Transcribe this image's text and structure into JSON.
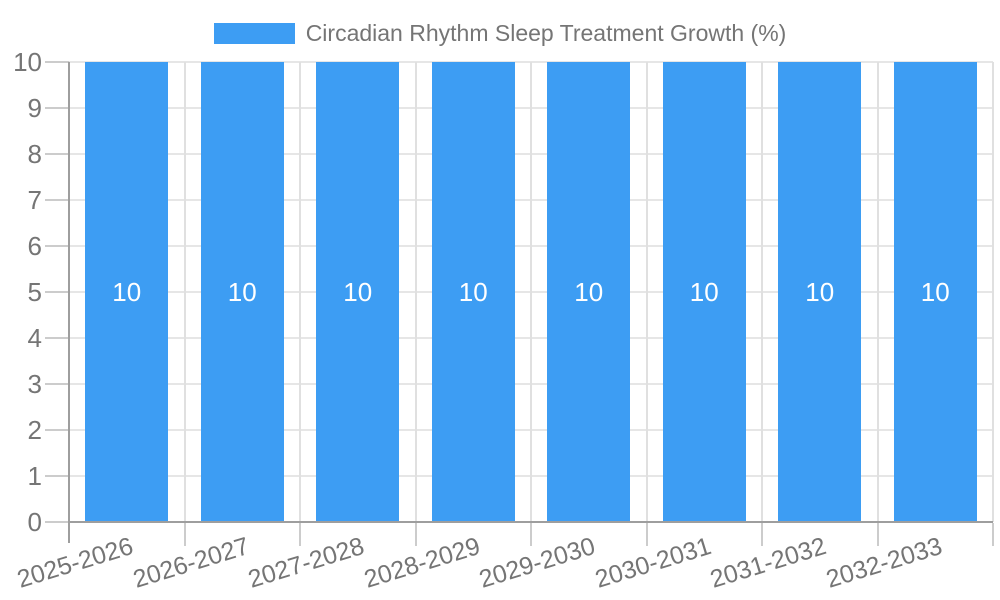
{
  "legend": {
    "label": "Circadian Rhythm Sleep Treatment Growth (%)"
  },
  "colors": {
    "bar": "#3D9DF3",
    "axis_line": "#9e9e9e",
    "grid_horizontal": "#e6e6e6",
    "grid_vertical": "#e0e0e0",
    "tick": "#cccccc",
    "label_text": "#757575",
    "bar_value_label": "#ffffff",
    "background": "#ffffff"
  },
  "chart_data": {
    "type": "bar",
    "title": "Circadian Rhythm Sleep Treatment Growth (%)",
    "categories": [
      "2025-2026",
      "2026-2027",
      "2027-2028",
      "2028-2029",
      "2029-2030",
      "2030-2031",
      "2031-2032",
      "2032-2033"
    ],
    "values": [
      10,
      10,
      10,
      10,
      10,
      10,
      10,
      10
    ],
    "bar_value_labels": [
      "10",
      "10",
      "10",
      "10",
      "10",
      "10",
      "10",
      "10"
    ],
    "xlabel": "",
    "ylabel": "",
    "ylim": [
      0,
      10
    ],
    "yticks": [
      0,
      1,
      2,
      3,
      4,
      5,
      6,
      7,
      8,
      9,
      10
    ],
    "grid": true,
    "legend_position": "top",
    "x_label_rotation_deg": -17
  }
}
